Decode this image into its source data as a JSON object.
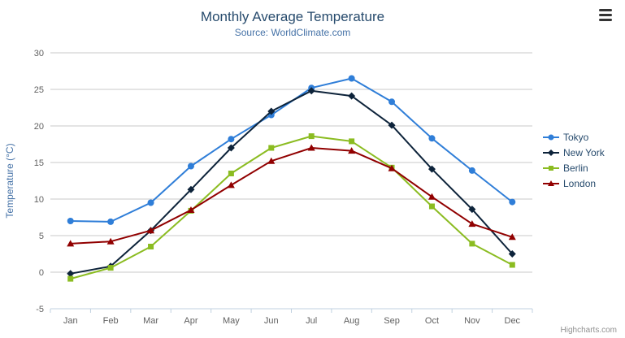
{
  "credits": {
    "label": "Highcharts.com"
  },
  "icons": {
    "export_menu": "hamburger"
  },
  "theme": {
    "title_color": "#274b6d",
    "subtitle_color": "#4572A7",
    "axis_title_color": "#4572A7",
    "tick_label_color": "#606060",
    "grid_color": "#C8C8C8",
    "axis_line_color": "#C0D0E0",
    "legend_text_color": "#274b6d",
    "credits_color": "#909090"
  },
  "chart_data": {
    "type": "line",
    "title": "Monthly Average Temperature",
    "subtitle": "Source: WorldClimate.com",
    "categories": [
      "Jan",
      "Feb",
      "Mar",
      "Apr",
      "May",
      "Jun",
      "Jul",
      "Aug",
      "Sep",
      "Oct",
      "Nov",
      "Dec"
    ],
    "xlabel": "",
    "ylabel": "Temperature (°C)",
    "ylim": [
      -5,
      30
    ],
    "ytick_interval": 5,
    "grid": true,
    "legend_position": "right",
    "series": [
      {
        "name": "Tokyo",
        "color": "#2f7ed8",
        "marker": "circle",
        "values": [
          7.0,
          6.9,
          9.5,
          14.5,
          18.2,
          21.5,
          25.2,
          26.5,
          23.3,
          18.3,
          13.9,
          9.6
        ]
      },
      {
        "name": "New York",
        "color": "#0d233a",
        "marker": "diamond",
        "values": [
          -0.2,
          0.8,
          5.7,
          11.3,
          17.0,
          22.0,
          24.8,
          24.1,
          20.1,
          14.1,
          8.6,
          2.5
        ]
      },
      {
        "name": "Berlin",
        "color": "#8bbc21",
        "marker": "square",
        "values": [
          -0.9,
          0.6,
          3.5,
          8.4,
          13.5,
          17.0,
          18.6,
          17.9,
          14.3,
          9.0,
          3.9,
          1.0
        ]
      },
      {
        "name": "London",
        "color": "#910000",
        "marker": "triangle",
        "values": [
          3.9,
          4.2,
          5.7,
          8.5,
          11.9,
          15.2,
          17.0,
          16.6,
          14.2,
          10.3,
          6.6,
          4.8
        ]
      }
    ]
  }
}
